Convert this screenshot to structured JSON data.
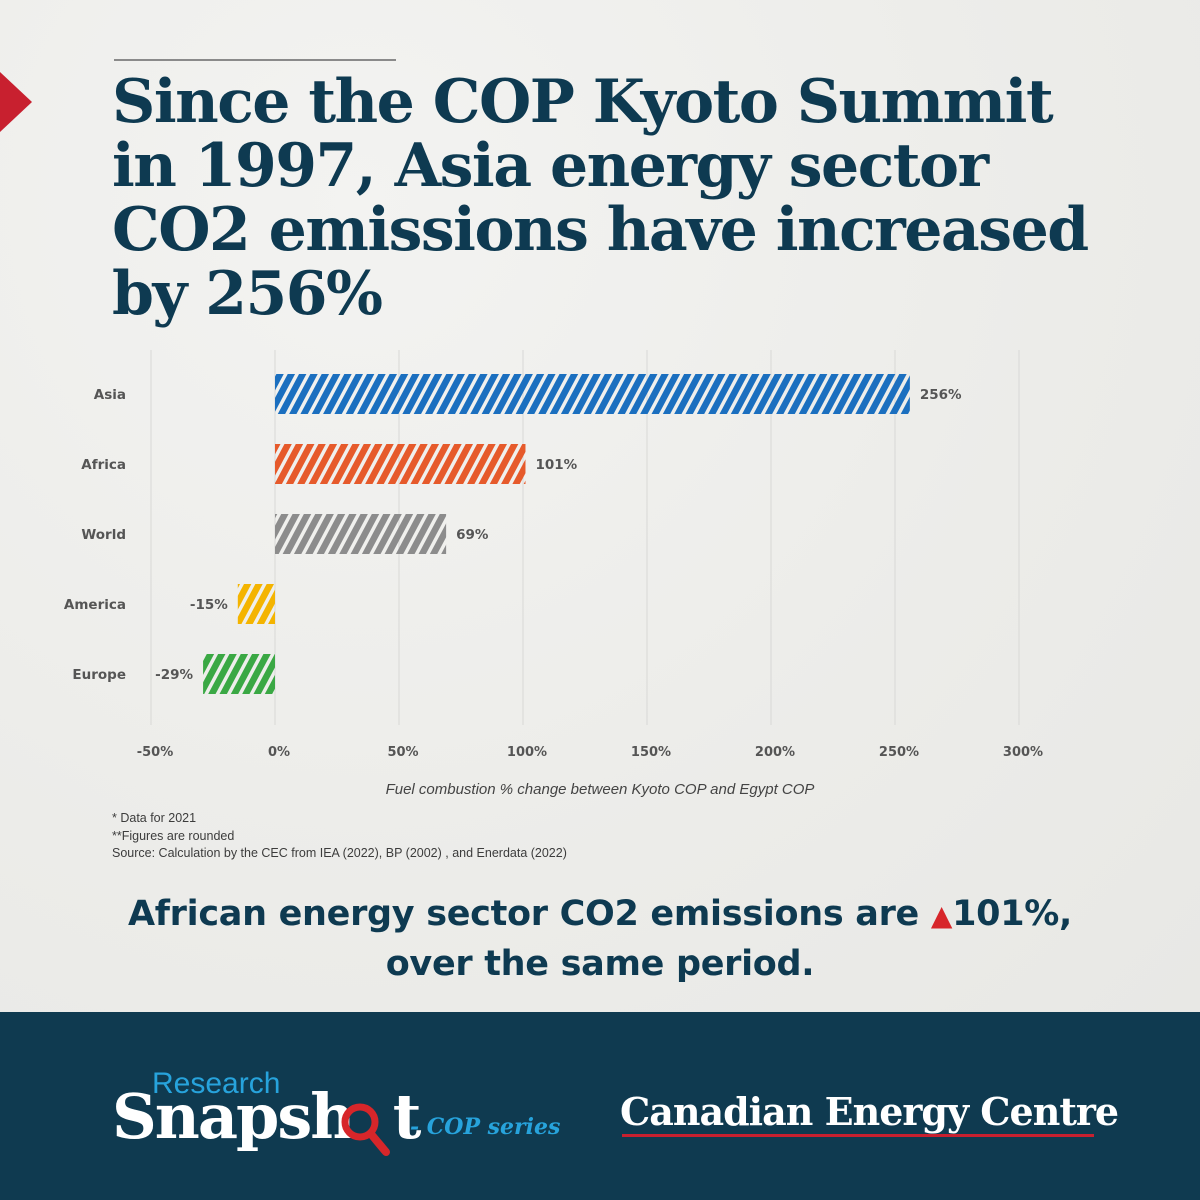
{
  "headline": "Since the COP Kyoto Summit in 1997, Asia energy sector CO2 emissions have increased by 256%",
  "chart_data": {
    "type": "bar",
    "orientation": "horizontal",
    "categories": [
      "Asia",
      "Africa",
      "World",
      "America",
      "Europe"
    ],
    "values": [
      256,
      101,
      69,
      -15,
      -29
    ],
    "value_labels": [
      "256%",
      "101%",
      "69%",
      "-15%",
      "-29%"
    ],
    "colors": [
      "#1b6fbf",
      "#e65a2b",
      "#8c8c8c",
      "#f4b400",
      "#3aa844"
    ],
    "bar_pattern": "diagonal-stripes",
    "xlim": [
      -50,
      300
    ],
    "xticks": [
      -50,
      0,
      50,
      100,
      150,
      200,
      250,
      300
    ],
    "xtick_labels": [
      "-50%",
      "0%",
      "50%",
      "100%",
      "150%",
      "200%",
      "250%",
      "300%"
    ],
    "xlabel": "Fuel combustion % change between Kyoto COP and Egypt COP",
    "grid": "vertical"
  },
  "notes": [
    "* Data for 2021",
    "**Figures are rounded",
    "Source:  Calculation by the CEC from IEA (2022), BP (2002) , and Enerdata (2022)"
  ],
  "callout": {
    "text_before": "African energy sector CO2 emissions are ",
    "arrow": "▲",
    "value": "101%,",
    "text_after": "over the same period."
  },
  "footer": {
    "brand_small": "Research",
    "brand_big": "Snapsh",
    "brand_big_tail": "t",
    "series": "- COP series",
    "org": "Canadian Energy Centre",
    "accent_red": "#c8202f",
    "accent_blue": "#27a3dc",
    "bg": "#0f3a50"
  }
}
